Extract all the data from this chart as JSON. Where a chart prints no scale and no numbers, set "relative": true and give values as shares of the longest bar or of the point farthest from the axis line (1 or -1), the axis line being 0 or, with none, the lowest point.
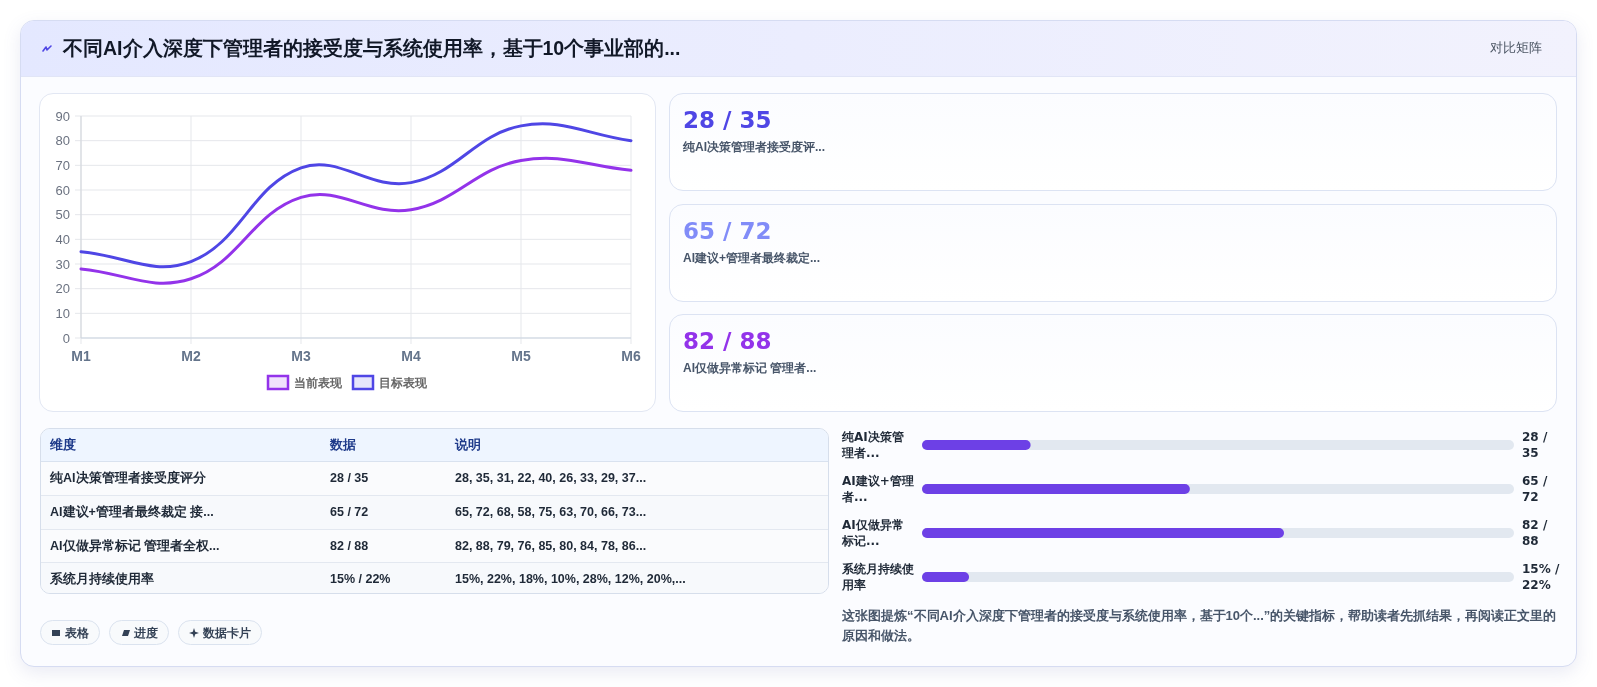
{
  "chart_data": [
    {
      "type": "other",
      "title": "不同AI介入深度下管理者的接受度与系统使用率，基于10个事业部的...",
      "subtitle": "对比矩阵"
    },
    {
      "type": "line",
      "categories": [
        "M1",
        "M2",
        "M3",
        "M4",
        "M5",
        "M6"
      ],
      "series": [
        {
          "name": "当前表现",
          "color": "#9333ea",
          "values": [
            28,
            24,
            57,
            52,
            72,
            68
          ]
        },
        {
          "name": "目标表现",
          "color": "#4f46e5",
          "values": [
            35,
            31,
            69,
            63,
            86,
            80
          ]
        }
      ],
      "ylim": [
        0,
        90
      ],
      "yticks": [
        0,
        10,
        20,
        30,
        40,
        50,
        60,
        70,
        80,
        90
      ],
      "grid": true,
      "legend": "bottom",
      "marker": "none",
      "line_style": "solid"
    },
    {
      "type": "other",
      "annotations": [
        "28 / 35",
        "纯AI决策管理者接受度评...",
        "65 / 72",
        "AI建议+管理者最终裁定...",
        "82 / 88",
        "AI仅做异常标记 管理者..."
      ],
      "colors": [
        "#4f46e5",
        "#818cf8",
        "#9333ea"
      ]
    },
    {
      "type": "other",
      "categories": [
        "维度",
        "数据",
        "说明"
      ],
      "annotations": [
        "纯AI决策管理者接受度评分",
        "28 / 35",
        "28, 35, 31, 22, 40, 26, 33, 29, 37...",
        "AI建议+管理者最终裁定 接...",
        "65 / 72",
        "65, 72, 68, 58, 75, 63, 70, 66, 73...",
        "AI仅做异常标记 管理者全权...",
        "82 / 88",
        "82, 88, 79, 76, 85, 80, 84, 78, 86...",
        "系统月持续使用率",
        "15% / 22%",
        "15%, 22%, 18%, 10%, 28%, 12%, 20%,..."
      ]
    },
    {
      "type": "other",
      "annotations": [
        "表格",
        "进度",
        "数据卡片"
      ]
    },
    {
      "type": "bar",
      "orientation": "horizontal",
      "relative": true,
      "categories": [
        "纯AI决策管理者...",
        "AI建议+管理者...",
        "AI仅做异常标记...",
        "系统月持续使用率"
      ],
      "color": "#6d40e6",
      "values": [
        0.3,
        0.74,
        1,
        0.13
      ],
      "annotations": [
        "28 / 35",
        "65 / 72",
        "82 / 88",
        "15% / 22%",
        "这张图提炼“不同AI介入深度下管理者的接受度与系统使用率，基于10个...”的关键指标，帮助读者先抓结果，再阅读正文里的原因和做法。"
      ]
    }
  ]
}
